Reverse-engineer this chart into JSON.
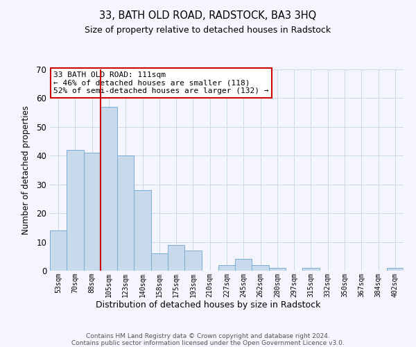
{
  "title": "33, BATH OLD ROAD, RADSTOCK, BA3 3HQ",
  "subtitle": "Size of property relative to detached houses in Radstock",
  "xlabel": "Distribution of detached houses by size in Radstock",
  "ylabel": "Number of detached properties",
  "bar_labels": [
    "53sqm",
    "70sqm",
    "88sqm",
    "105sqm",
    "123sqm",
    "140sqm",
    "158sqm",
    "175sqm",
    "193sqm",
    "210sqm",
    "227sqm",
    "245sqm",
    "262sqm",
    "280sqm",
    "297sqm",
    "315sqm",
    "332sqm",
    "350sqm",
    "367sqm",
    "384sqm",
    "402sqm"
  ],
  "bar_values": [
    14,
    42,
    41,
    57,
    40,
    28,
    6,
    9,
    7,
    0,
    2,
    4,
    2,
    1,
    0,
    1,
    0,
    0,
    0,
    0,
    1
  ],
  "bar_color": "#c9d9ec",
  "bar_edgecolor": "#7aadd4",
  "vline_color": "#cc0000",
  "vline_x_index": 3,
  "ylim": [
    0,
    70
  ],
  "yticks": [
    0,
    10,
    20,
    30,
    40,
    50,
    60,
    70
  ],
  "annotation_line1": "33 BATH OLD ROAD: 111sqm",
  "annotation_line2": "← 46% of detached houses are smaller (118)",
  "annotation_line3": "52% of semi-detached houses are larger (132) →",
  "annotation_box_color": "#ffffff",
  "annotation_box_edgecolor": "#cc0000",
  "footer_text": "Contains HM Land Registry data © Crown copyright and database right 2024.\nContains public sector information licensed under the Open Government Licence v3.0.",
  "background_color": "#f5f5ff",
  "grid_color": "#c8d8ea",
  "title_fontsize": 10.5,
  "subtitle_fontsize": 9
}
